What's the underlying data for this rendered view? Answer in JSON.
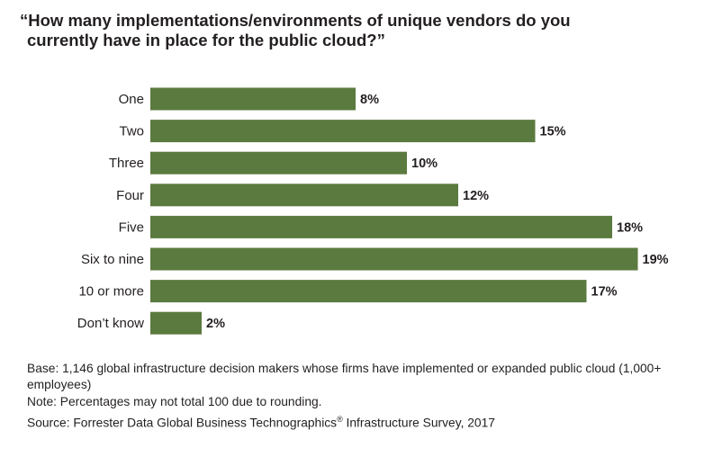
{
  "title_line1": "“How many implementations/environments of unique vendors do you",
  "title_line2": "currently have in place for the public cloud?”",
  "chart_data": {
    "type": "bar",
    "orientation": "horizontal",
    "title": "“How many implementations/environments of unique vendors do you currently have in place for the public cloud?”",
    "categories": [
      "One",
      "Two",
      "Three",
      "Four",
      "Five",
      "Six to nine",
      "10 or more",
      "Don’t know"
    ],
    "values": [
      8,
      15,
      10,
      12,
      18,
      19,
      17,
      2
    ],
    "value_labels": [
      "8%",
      "15%",
      "10%",
      "12%",
      "18%",
      "19%",
      "17%",
      "2%"
    ],
    "unit": "%",
    "xlim": [
      0,
      19
    ],
    "grid": false,
    "bar_color": "#5b7a3f"
  },
  "notes": {
    "base": "Base: 1,146 global infrastructure decision makers whose firms have implemented or expanded public cloud (1,000+ employees)",
    "note": "Note: Percentages may not total 100 due to rounding.",
    "source_prefix": "Source: Forrester Data Global Business Technographics",
    "source_reg": "®",
    "source_suffix": " Infrastructure Survey, 2017"
  }
}
